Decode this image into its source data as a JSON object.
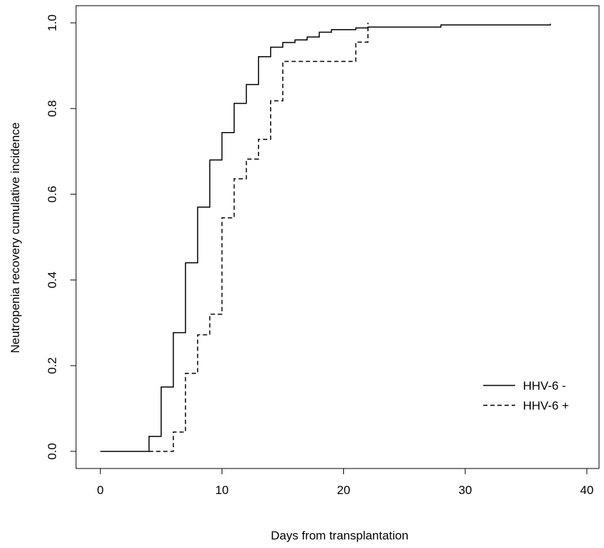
{
  "chart_data": {
    "type": "line",
    "title": "",
    "xlabel": "Days from transplantation",
    "ylabel": "Neutropenia recovery cumulative incidence",
    "xlim": [
      -2,
      41
    ],
    "ylim": [
      -0.04,
      1.04
    ],
    "xticks": [
      "0",
      "10",
      "20",
      "30",
      "40"
    ],
    "xtick_values": [
      0,
      10,
      20,
      30,
      40
    ],
    "yticks": [
      "0.0",
      "0.2",
      "0.4",
      "0.6",
      "0.8",
      "1.0"
    ],
    "ytick_values": [
      0,
      0.2,
      0.4,
      0.6,
      0.8,
      1.0
    ],
    "step": true,
    "grid": false,
    "legend_position": "right",
    "series": [
      {
        "name": "HHV-6 -",
        "line_style": "solid",
        "x": [
          0,
          4,
          5,
          6,
          7,
          8,
          9,
          10,
          11,
          12,
          13,
          14,
          15,
          16,
          17,
          18,
          19,
          21,
          22,
          28,
          37
        ],
        "y": [
          0.0,
          0.035,
          0.15,
          0.277,
          0.44,
          0.57,
          0.68,
          0.744,
          0.812,
          0.856,
          0.921,
          0.943,
          0.954,
          0.96,
          0.967,
          0.978,
          0.984,
          0.988,
          0.99,
          0.995,
          0.998
        ]
      },
      {
        "name": "HHV-6 +",
        "line_style": "dashed",
        "x": [
          4,
          6,
          7,
          8,
          9,
          10,
          11,
          12,
          13,
          14,
          15,
          21,
          22
        ],
        "y": [
          0.0,
          0.045,
          0.182,
          0.272,
          0.32,
          0.545,
          0.636,
          0.682,
          0.728,
          0.818,
          0.91,
          0.955,
          1.0
        ]
      }
    ]
  },
  "colors": {
    "line": "#000000",
    "axis": "#000000",
    "background": "#ffffff"
  }
}
